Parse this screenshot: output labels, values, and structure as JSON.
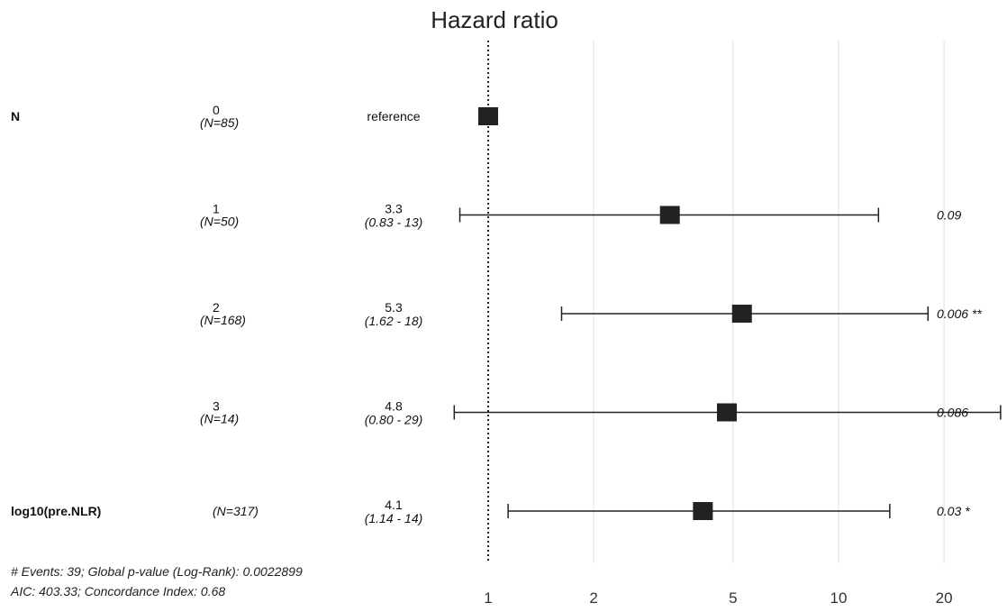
{
  "chart_data": {
    "type": "forest",
    "title": "Hazard ratio",
    "x_scale": "log",
    "xlim": [
      0.9,
      27
    ],
    "x_ticks": [
      1,
      2,
      5,
      10,
      20
    ],
    "x_tick_labels": [
      "1",
      "2",
      "5",
      "10",
      "20"
    ],
    "reference_line": 1,
    "grid": "vertical",
    "rows": [
      {
        "variable": "N",
        "level": "0",
        "n": "(N=85)",
        "estimate_label": "reference",
        "ci_label": "",
        "hr": 1.0,
        "lower": null,
        "upper": null,
        "p": ""
      },
      {
        "variable": "",
        "level": "1",
        "n": "(N=50)",
        "estimate_label": "3.3",
        "ci_label": "(0.83 - 13)",
        "hr": 3.3,
        "lower": 0.83,
        "upper": 13,
        "p": "0.09"
      },
      {
        "variable": "",
        "level": "2",
        "n": "(N=168)",
        "estimate_label": "5.3",
        "ci_label": "(1.62 - 18)",
        "hr": 5.3,
        "lower": 1.62,
        "upper": 18,
        "p": "0.006 **"
      },
      {
        "variable": "",
        "level": "3",
        "n": "(N=14)",
        "estimate_label": "4.8",
        "ci_label": "(0.80 - 29)",
        "hr": 4.8,
        "lower": 0.8,
        "upper": 29,
        "p": "0.086"
      },
      {
        "variable": "log10(pre.NLR)",
        "level": "",
        "n": "(N=317)",
        "estimate_label": "4.1",
        "ci_label": "(1.14 - 14)",
        "hr": 4.1,
        "lower": 1.14,
        "upper": 14,
        "p": "0.03 *"
      }
    ],
    "footer": [
      "# Events: 39; Global p-value (Log-Rank): 0.0022899",
      "AIC: 403.33; Concordance Index: 0.68"
    ]
  }
}
